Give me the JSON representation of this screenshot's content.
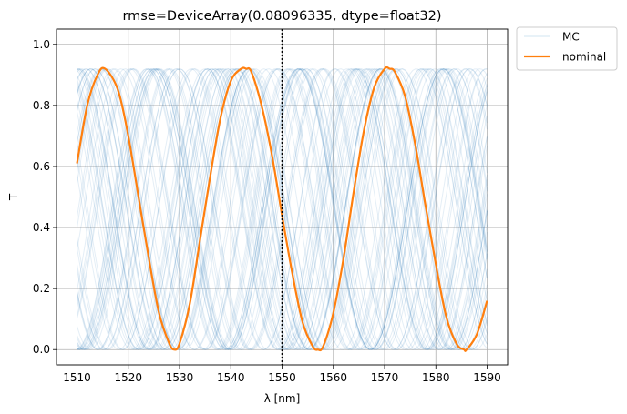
{
  "chart_data": {
    "type": "line",
    "title": "rmse=DeviceArray(0.08096335, dtype=float32)",
    "xlabel": "λ [nm]",
    "ylabel": "T",
    "xlim": [
      1506,
      1594
    ],
    "ylim": [
      -0.05,
      1.05
    ],
    "xticks": [
      1510,
      1520,
      1530,
      1540,
      1550,
      1560,
      1570,
      1580,
      1590
    ],
    "yticks": [
      0.0,
      0.2,
      0.4,
      0.6,
      0.8,
      1.0
    ],
    "grid": true,
    "legend_placement": "outside-top-right",
    "vline": {
      "x": 1550,
      "style": "dotted",
      "color": "#000000"
    },
    "series": [
      {
        "name": "MC",
        "kind": "monte-carlo-ensemble",
        "color": "#1f77b4",
        "opacity": 0.12,
        "count": 60,
        "x_range": [
          1510,
          1590
        ],
        "model": "T = 0.46 + 0.46*cos(2π(x - x_peak)/period)",
        "period_range": [
          27,
          29
        ],
        "peak_offset_range": [
          -14,
          14
        ]
      },
      {
        "name": "nominal",
        "kind": "line",
        "color": "#ff7f0e",
        "x": [
          1510,
          1512,
          1514,
          1515.5,
          1518,
          1520,
          1522,
          1524,
          1526,
          1528,
          1529,
          1530,
          1532,
          1534,
          1536,
          1538,
          1540,
          1542,
          1543,
          1544,
          1546,
          1548,
          1550,
          1552,
          1554,
          1556,
          1557,
          1558,
          1560,
          1562,
          1564,
          1566,
          1568,
          1570,
          1571,
          1572,
          1574,
          1576,
          1578,
          1580,
          1582,
          1584,
          1585.5,
          1586,
          1588,
          1590
        ],
        "y": [
          0.61,
          0.8,
          0.9,
          0.92,
          0.85,
          0.7,
          0.5,
          0.3,
          0.12,
          0.02,
          0.0,
          0.02,
          0.15,
          0.36,
          0.57,
          0.76,
          0.88,
          0.92,
          0.92,
          0.91,
          0.8,
          0.64,
          0.44,
          0.25,
          0.09,
          0.01,
          0.0,
          0.01,
          0.12,
          0.3,
          0.52,
          0.72,
          0.86,
          0.92,
          0.92,
          0.91,
          0.83,
          0.67,
          0.47,
          0.28,
          0.11,
          0.02,
          0.0,
          0.0,
          0.05,
          0.16
        ]
      }
    ]
  }
}
